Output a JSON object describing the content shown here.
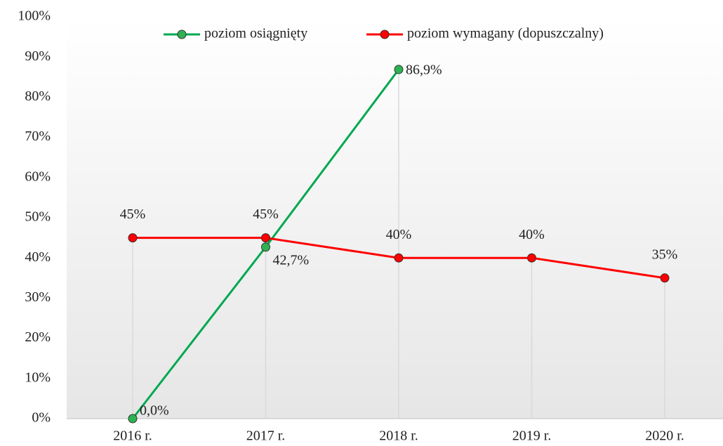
{
  "chart_data": {
    "type": "line",
    "categories": [
      "2016 r.",
      "2017 r.",
      "2018 r.",
      "2019 r.",
      "2020 r."
    ],
    "series": [
      {
        "name": "poziom osiągnięty",
        "color": "#00a850",
        "marker_color": "#2eb352",
        "values": [
          0,
          42.7,
          86.9,
          null,
          null
        ],
        "value_labels": [
          "0,0%",
          "42,7%",
          "86,9%",
          null,
          null
        ],
        "label_position": "right"
      },
      {
        "name": "poziom wymagany (dopuszczalny)",
        "color": "#ff0000",
        "marker_color": "#ff0000",
        "values": [
          45,
          45,
          40,
          40,
          35
        ],
        "value_labels": [
          "45%",
          "45%",
          "40%",
          "40%",
          "35%"
        ],
        "label_position": "above"
      }
    ],
    "ylim": [
      0,
      100
    ],
    "yticks": [
      {
        "value": 0,
        "label": "0%"
      },
      {
        "value": 10,
        "label": "10%"
      },
      {
        "value": 20,
        "label": "20%"
      },
      {
        "value": 30,
        "label": "30%"
      },
      {
        "value": 40,
        "label": "40%"
      },
      {
        "value": 50,
        "label": "50%"
      },
      {
        "value": 60,
        "label": "60%"
      },
      {
        "value": 70,
        "label": "70%"
      },
      {
        "value": 80,
        "label": "80%"
      },
      {
        "value": 90,
        "label": "90%"
      },
      {
        "value": 100,
        "label": "100%"
      }
    ],
    "legend": "top"
  }
}
